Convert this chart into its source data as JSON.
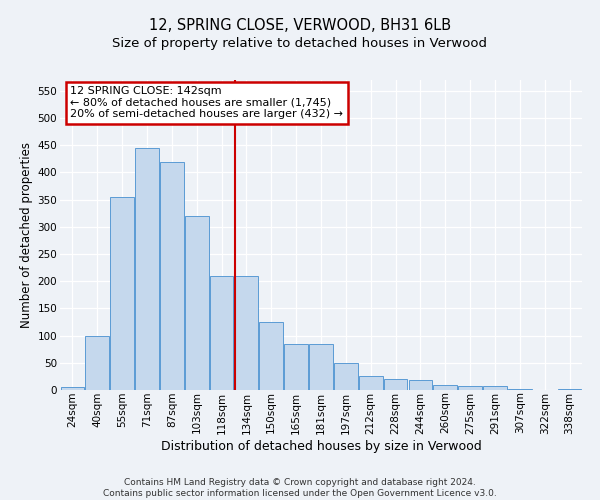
{
  "title": "12, SPRING CLOSE, VERWOOD, BH31 6LB",
  "subtitle": "Size of property relative to detached houses in Verwood",
  "xlabel": "Distribution of detached houses by size in Verwood",
  "ylabel": "Number of detached properties",
  "categories": [
    "24sqm",
    "40sqm",
    "55sqm",
    "71sqm",
    "87sqm",
    "103sqm",
    "118sqm",
    "134sqm",
    "150sqm",
    "165sqm",
    "181sqm",
    "197sqm",
    "212sqm",
    "228sqm",
    "244sqm",
    "260sqm",
    "275sqm",
    "291sqm",
    "307sqm",
    "322sqm",
    "338sqm"
  ],
  "values": [
    5,
    100,
    355,
    445,
    420,
    320,
    210,
    210,
    125,
    85,
    85,
    50,
    25,
    20,
    18,
    10,
    8,
    8,
    2,
    0,
    2
  ],
  "bar_color": "#c5d8ed",
  "bar_edge_color": "#5b9bd5",
  "vline_index": 7,
  "vline_color": "#cc0000",
  "ylim": [
    0,
    570
  ],
  "yticks": [
    0,
    50,
    100,
    150,
    200,
    250,
    300,
    350,
    400,
    450,
    500,
    550
  ],
  "annotation_title": "12 SPRING CLOSE: 142sqm",
  "annotation_line1": "← 80% of detached houses are smaller (1,745)",
  "annotation_line2": "20% of semi-detached houses are larger (432) →",
  "annotation_box_color": "#ffffff",
  "annotation_box_edge": "#cc0000",
  "footer_line1": "Contains HM Land Registry data © Crown copyright and database right 2024.",
  "footer_line2": "Contains public sector information licensed under the Open Government Licence v3.0.",
  "background_color": "#eef2f7",
  "grid_color": "#ffffff",
  "title_fontsize": 10.5,
  "subtitle_fontsize": 9.5,
  "xlabel_fontsize": 9,
  "ylabel_fontsize": 8.5,
  "tick_fontsize": 7.5,
  "footer_fontsize": 6.5,
  "ann_fontsize": 8
}
